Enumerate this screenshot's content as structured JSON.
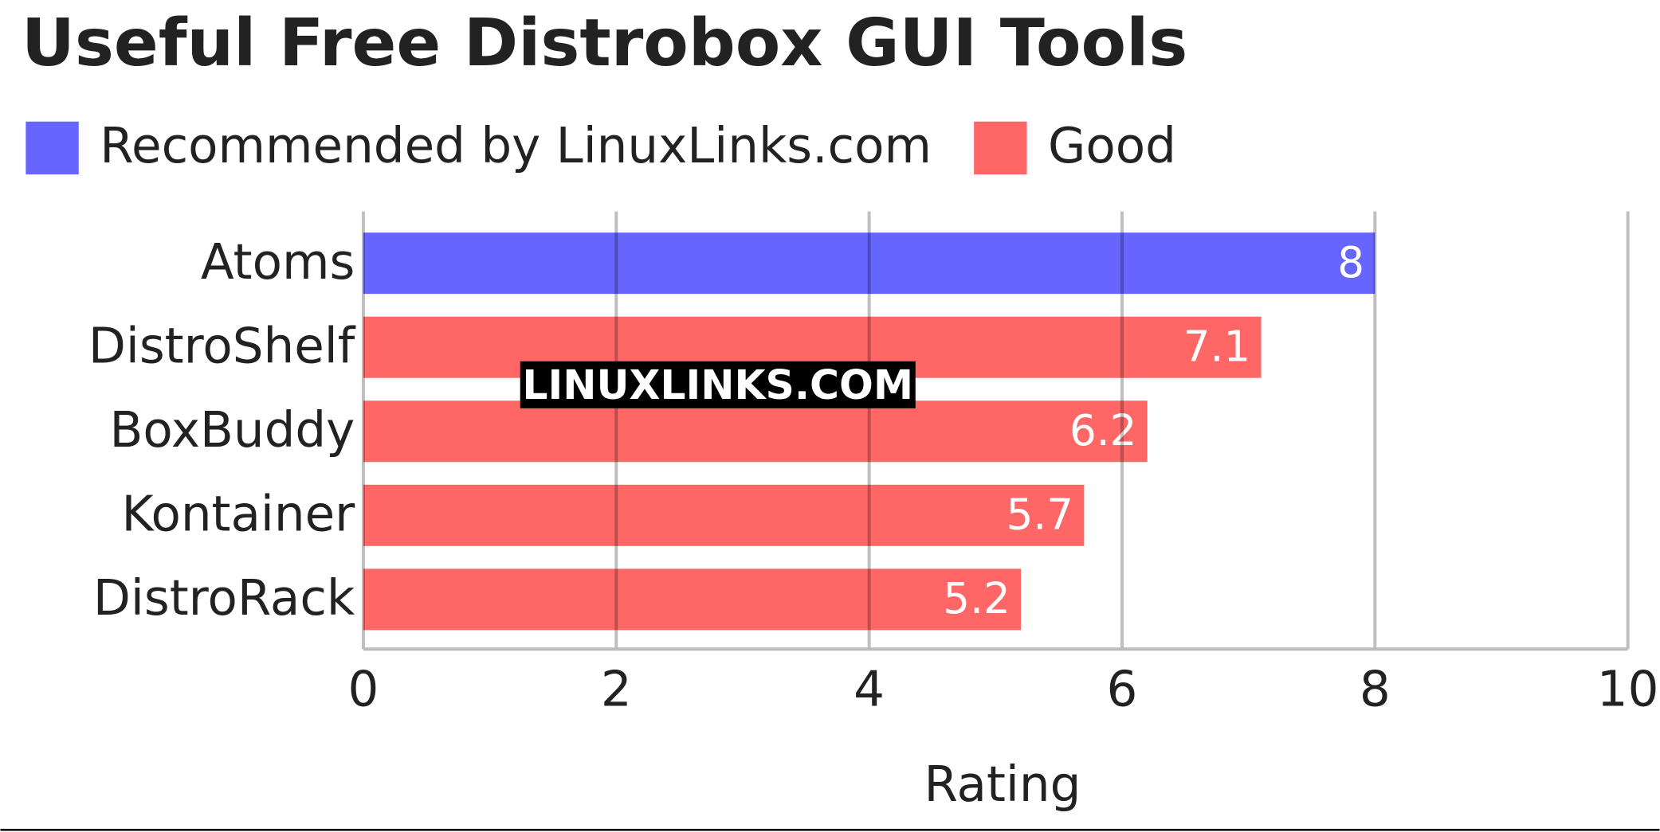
{
  "chart_data": {
    "type": "barh",
    "title": "Useful Free Distrobox GUI Tools",
    "watermark": "LINUXLINKS.COM",
    "categories": [
      "Atoms",
      "DistroShelf",
      "BoxBuddy",
      "Kontainer",
      "DistroRack"
    ],
    "series": [
      {
        "name": "Recommended by LinuxLinks.com",
        "color": "#6666ff",
        "values": [
          8,
          null,
          null,
          null,
          null
        ]
      },
      {
        "name": "Good",
        "color": "#ff6666",
        "values": [
          null,
          7.1,
          6.2,
          5.7,
          5.2
        ]
      }
    ],
    "xlabel": "Rating",
    "xlim": [
      0,
      10
    ],
    "xticks": [
      0,
      2,
      4,
      6,
      8,
      10
    ],
    "grid": true,
    "legend": "top"
  }
}
